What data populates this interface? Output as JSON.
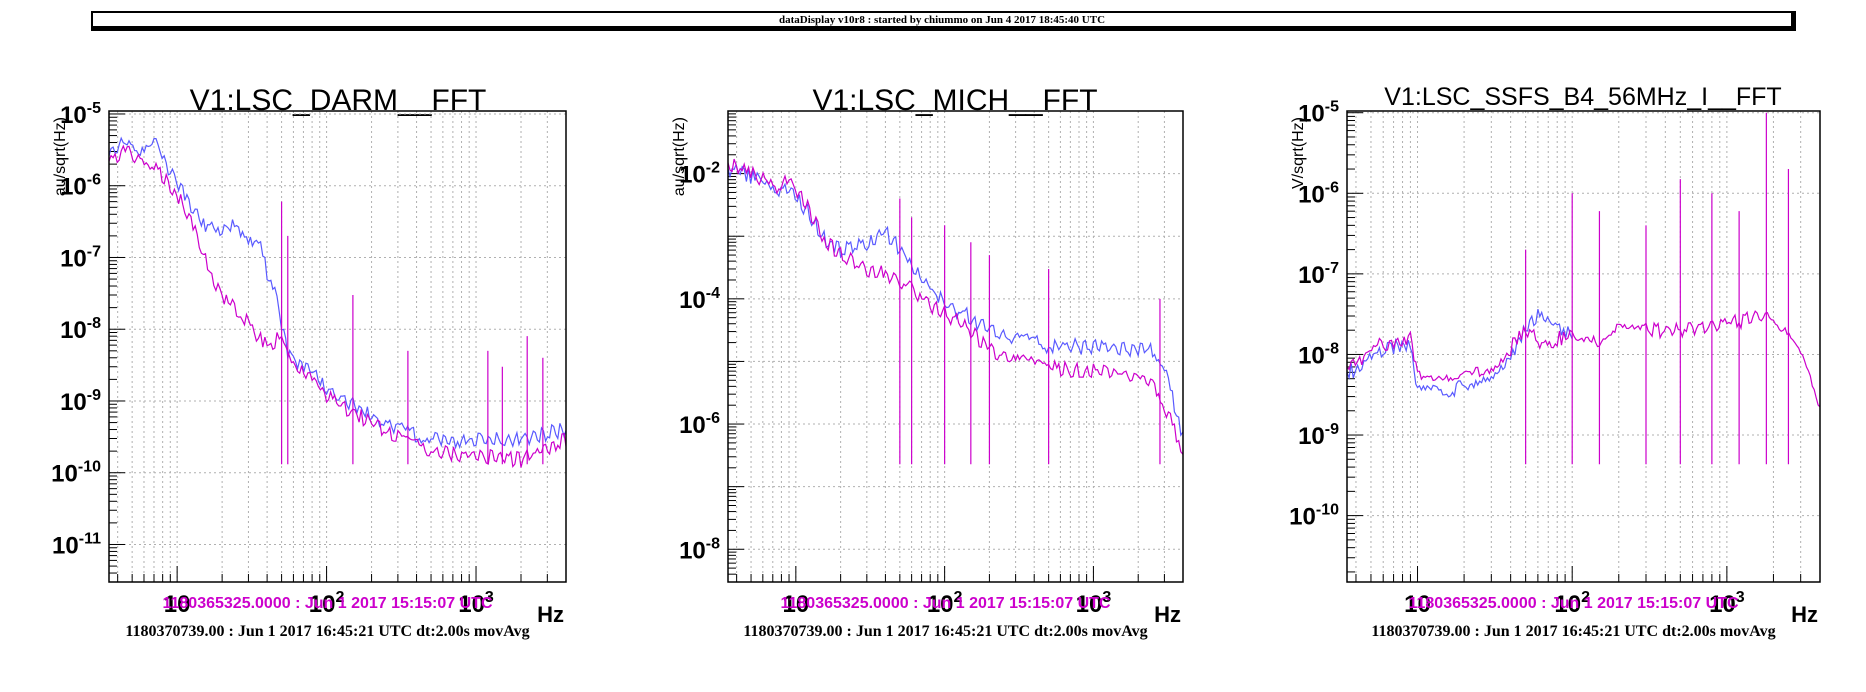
{
  "window": {
    "header": "dataDisplay v10r8 : started by chiummo on Jun  4 2017 18:45:40 UTC"
  },
  "colors": {
    "reference_trace": "#cc00cc",
    "live_trace": "#5a5aff",
    "grid": "#b0b0b0"
  },
  "chart_data": [
    {
      "type": "line",
      "title": "V1:LSC_DARM__FFT",
      "ylabel": "au/sqrt(Hz)",
      "xlabel": "Hz",
      "xscale": "log",
      "yscale": "log",
      "xlim": [
        3.5,
        4000
      ],
      "ylim": [
        3e-12,
        1.1e-05
      ],
      "grid": true,
      "x_tick_labels": [
        {
          "value": 10,
          "base": "10",
          "exp": ""
        },
        {
          "value": 100,
          "base": "10",
          "exp": "2"
        },
        {
          "value": 1000,
          "base": "10",
          "exp": "3"
        }
      ],
      "y_tick_labels": [
        {
          "value": 1e-05,
          "base": "10",
          "exp": "-5"
        },
        {
          "value": 1e-06,
          "base": "10",
          "exp": "-6"
        },
        {
          "value": 1e-07,
          "base": "10",
          "exp": "-7"
        },
        {
          "value": 1e-08,
          "base": "10",
          "exp": "-8"
        },
        {
          "value": 1e-09,
          "base": "10",
          "exp": "-9"
        },
        {
          "value": 1e-10,
          "base": "10",
          "exp": "-10"
        },
        {
          "value": 1e-11,
          "base": "10",
          "exp": "-11"
        }
      ],
      "series": [
        {
          "name": "1180365325.0000 : Jun  1 2017 15:15:07 UTC",
          "color": "#cc00cc",
          "x": [
            3.5,
            4.5,
            5.5,
            7,
            9,
            12,
            15,
            20,
            25,
            30,
            35,
            40,
            45,
            50,
            55,
            60,
            80,
            100,
            150,
            200,
            300,
            500,
            1000,
            2000,
            4000
          ],
          "y": [
            2.2e-06,
            3e-06,
            2.5e-06,
            2e-06,
            1e-06,
            4e-07,
            1e-07,
            3e-08,
            1.8e-08,
            1.2e-08,
            8e-09,
            6e-09,
            7e-09,
            1e-08,
            4e-09,
            3e-09,
            2e-09,
            1.2e-09,
            7e-10,
            5e-10,
            3e-10,
            2e-10,
            1.7e-10,
            1.5e-10,
            3e-10
          ]
        },
        {
          "name": "1180370739.00 : Jun  1 2017 16:45:21 UTC dt:2.00s movAvg",
          "color": "#5a5aff",
          "x": [
            3.5,
            4.5,
            5.5,
            7,
            9,
            12,
            15,
            20,
            25,
            30,
            35,
            40,
            45,
            50,
            55,
            60,
            80,
            100,
            150,
            200,
            300,
            500,
            1000,
            2000,
            4000
          ],
          "y": [
            2.6e-06,
            4e-06,
            3e-06,
            5e-06,
            1.5e-06,
            6e-07,
            3e-07,
            2.5e-07,
            3e-07,
            1.5e-07,
            2e-07,
            6e-08,
            4e-08,
            1e-08,
            5e-09,
            4e-09,
            2.5e-09,
            1.5e-09,
            9e-10,
            6e-10,
            4e-10,
            3e-10,
            2.8e-10,
            3e-10,
            4e-10
          ]
        }
      ],
      "spikes": [
        {
          "x": 50,
          "y": 6e-07
        },
        {
          "x": 55,
          "y": 2e-07
        },
        {
          "x": 150,
          "y": 3e-08
        },
        {
          "x": 350,
          "y": 5e-09
        },
        {
          "x": 1200,
          "y": 5e-09
        },
        {
          "x": 1500,
          "y": 3e-09
        },
        {
          "x": 2200,
          "y": 8e-09
        },
        {
          "x": 2800,
          "y": 4e-09
        }
      ]
    },
    {
      "type": "line",
      "title": "V1:LSC_MICH__FFT",
      "ylabel": "au/sqrt(Hz)",
      "xlabel": "Hz",
      "xscale": "log",
      "yscale": "log",
      "xlim": [
        3.5,
        4000
      ],
      "ylim": [
        3e-09,
        0.1
      ],
      "grid": true,
      "x_tick_labels": [
        {
          "value": 10,
          "base": "10",
          "exp": ""
        },
        {
          "value": 100,
          "base": "10",
          "exp": "2"
        },
        {
          "value": 1000,
          "base": "10",
          "exp": "3"
        }
      ],
      "y_tick_labels": [
        {
          "value": 0.01,
          "base": "10",
          "exp": "-2"
        },
        {
          "value": 0.0001,
          "base": "10",
          "exp": "-4"
        },
        {
          "value": 1e-06,
          "base": "10",
          "exp": "-6"
        },
        {
          "value": 1e-08,
          "base": "10",
          "exp": "-8"
        }
      ],
      "series": [
        {
          "name": "1180365325.0000 : Jun  1 2017 15:15:07 UTC",
          "color": "#cc00cc",
          "x": [
            3.5,
            4.5,
            5.5,
            7,
            9,
            12,
            15,
            20,
            30,
            40,
            50,
            60,
            80,
            100,
            150,
            200,
            300,
            500,
            1000,
            2000,
            2500,
            3000,
            3500,
            4000
          ],
          "y": [
            0.015,
            0.012,
            0.009,
            0.006,
            0.008,
            0.003,
            0.001,
            0.0005,
            0.0003,
            0.00025,
            0.0002,
            0.00015,
            8e-05,
            6e-05,
            3e-05,
            1.5e-05,
            1e-05,
            8e-06,
            7e-06,
            6e-06,
            5e-06,
            2e-06,
            8e-07,
            3e-07
          ]
        },
        {
          "name": "1180370739.00 : Jun  1 2017 16:45:21 UTC dt:2.00s movAvg",
          "color": "#5a5aff",
          "x": [
            3.5,
            4.5,
            5.5,
            7,
            9,
            12,
            15,
            20,
            30,
            40,
            50,
            60,
            80,
            100,
            150,
            200,
            300,
            500,
            1000,
            2000,
            2500,
            3000,
            3500,
            4000
          ],
          "y": [
            0.012,
            0.01,
            0.008,
            0.005,
            0.006,
            0.0025,
            0.001,
            0.0006,
            0.0008,
            0.0012,
            0.0006,
            0.0003,
            0.00015,
            8e-05,
            5e-05,
            3e-05,
            2.2e-05,
            1.8e-05,
            1.7e-05,
            1.6e-05,
            1.5e-05,
            8e-06,
            2e-06,
            6e-07
          ]
        }
      ],
      "spikes": [
        {
          "x": 50,
          "y": 0.004
        },
        {
          "x": 60,
          "y": 0.002
        },
        {
          "x": 100,
          "y": 0.0015
        },
        {
          "x": 150,
          "y": 0.0008
        },
        {
          "x": 200,
          "y": 0.0005
        },
        {
          "x": 500,
          "y": 0.0003
        },
        {
          "x": 2800,
          "y": 0.0001
        }
      ]
    },
    {
      "type": "line",
      "title": "V1:LSC_SSFS_B4_56MHz_I__FFT",
      "ylabel": "V/sqrt(Hz)",
      "xlabel": "Hz",
      "xscale": "log",
      "yscale": "log",
      "xlim": [
        3.5,
        4000
      ],
      "ylim": [
        1.5e-11,
        1.05e-05
      ],
      "grid": true,
      "x_tick_labels": [
        {
          "value": 10,
          "base": "10",
          "exp": ""
        },
        {
          "value": 100,
          "base": "10",
          "exp": "2"
        },
        {
          "value": 1000,
          "base": "10",
          "exp": "3"
        }
      ],
      "y_tick_labels": [
        {
          "value": 1e-05,
          "base": "10",
          "exp": "-5"
        },
        {
          "value": 1e-06,
          "base": "10",
          "exp": "-6"
        },
        {
          "value": 1e-07,
          "base": "10",
          "exp": "-7"
        },
        {
          "value": 1e-08,
          "base": "10",
          "exp": "-8"
        },
        {
          "value": 1e-09,
          "base": "10",
          "exp": "-9"
        },
        {
          "value": 1e-10,
          "base": "10",
          "exp": "-10"
        }
      ],
      "series": [
        {
          "name": "1180365325.0000 : Jun  1 2017 15:15:07 UTC",
          "color": "#cc00cc",
          "x": [
            3.5,
            4.5,
            5.5,
            7,
            9,
            10,
            15,
            20,
            30,
            40,
            50,
            60,
            80,
            100,
            150,
            200,
            300,
            500,
            1000,
            2000,
            3000,
            4000
          ],
          "y": [
            7e-09,
            8e-09,
            1.3e-08,
            1.5e-08,
            1.5e-08,
            5e-09,
            4.5e-09,
            5e-09,
            7e-09,
            1.2e-08,
            2e-08,
            1.5e-08,
            1.5e-08,
            2e-08,
            1.2e-08,
            2e-08,
            2e-08,
            2e-08,
            2.5e-08,
            3e-08,
            1e-08,
            2e-09
          ]
        },
        {
          "name": "1180370739.00 : Jun  1 2017 16:45:21 UTC dt:2.00s movAvg",
          "color": "#5a5aff",
          "x": [
            3.5,
            4.5,
            5.5,
            7,
            9,
            10,
            15,
            20,
            30,
            40,
            50,
            60,
            80,
            100
          ],
          "y": [
            6e-09,
            7e-09,
            1e-08,
            1.2e-08,
            1.3e-08,
            3.5e-09,
            3.5e-09,
            4e-09,
            6e-09,
            1e-08,
            2e-08,
            3e-08,
            2e-08,
            1.8e-08
          ]
        }
      ],
      "spikes": [
        {
          "x": 50,
          "y": 2e-07
        },
        {
          "x": 100,
          "y": 1e-06
        },
        {
          "x": 150,
          "y": 6e-07
        },
        {
          "x": 300,
          "y": 4e-07
        },
        {
          "x": 500,
          "y": 1.5e-06
        },
        {
          "x": 800,
          "y": 1e-06
        },
        {
          "x": 1200,
          "y": 6e-07
        },
        {
          "x": 1800,
          "y": 1e-05
        },
        {
          "x": 2500,
          "y": 2e-06
        }
      ]
    }
  ],
  "footer": {
    "reference_time": "1180365325.0000 : Jun  1 2017 15:15:07 UTC",
    "live_time": "1180370739.00 : Jun  1 2017 16:45:21 UTC dt:2.00s movAvg"
  }
}
